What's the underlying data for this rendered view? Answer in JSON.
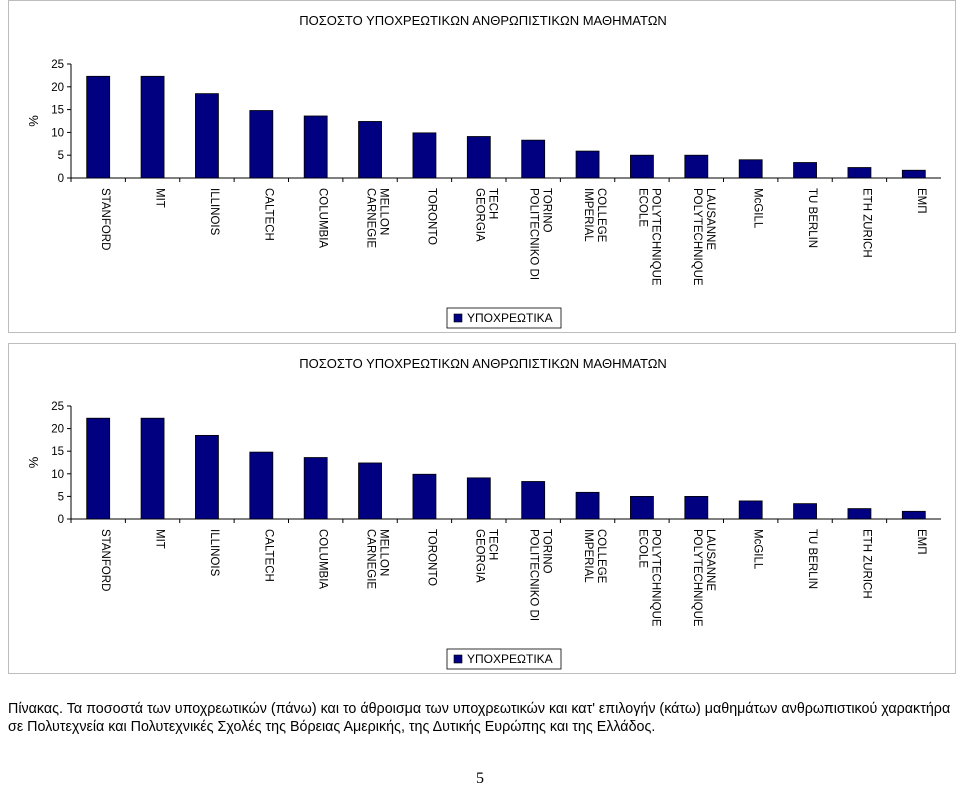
{
  "chart_data": [
    {
      "type": "bar",
      "title": "ΠΟΣΟΣΤΟ ΥΠΟΧΡΕΩΤΙΚΩΝ ΑΝΘΡΩΠΙΣΤΙΚΩΝ ΜΑΘΗΜΑΤΩΝ",
      "ylabel": "%",
      "ylim": [
        0,
        25
      ],
      "yticks": [
        0,
        5,
        10,
        15,
        20,
        25
      ],
      "grid": false,
      "legend_position": "bottom",
      "categories": [
        "STANFORD",
        "MIT",
        "ILLINOIS",
        "CALTECH",
        "COLUMBIA",
        "CARNEGIE MELLON",
        "TORONTO",
        "GEORGIA TECH",
        "POLITECNIKO DI TORINO",
        "IMPERIAL COLLEGE",
        "ECOLE POLYTECHNIQUE",
        "POLYTECHNIQUE LAUSANNE",
        "McGILL",
        "TU BERLIN",
        "ETH ZURICH",
        "ΕΜΠ"
      ],
      "series": [
        {
          "name": "ΥΠΟΧΡΕΩΤΙΚΑ",
          "color": "#000080",
          "values": [
            22.3,
            22.3,
            18.5,
            14.8,
            13.6,
            12.4,
            9.9,
            9.1,
            8.3,
            5.9,
            5.0,
            5.0,
            4.0,
            3.4,
            2.3,
            1.7
          ]
        }
      ]
    },
    {
      "type": "bar",
      "title": "ΠΟΣΟΣΤΟ ΥΠΟΧΡΕΩΤΙΚΩΝ ΑΝΘΡΩΠΙΣΤΙΚΩΝ ΜΑΘΗΜΑΤΩΝ",
      "ylabel": "%",
      "ylim": [
        0,
        25
      ],
      "yticks": [
        0,
        5,
        10,
        15,
        20,
        25
      ],
      "grid": false,
      "legend_position": "bottom",
      "categories": [
        "STANFORD",
        "MIT",
        "ILLINOIS",
        "CALTECH",
        "COLUMBIA",
        "CARNEGIE MELLON",
        "TORONTO",
        "GEORGIA TECH",
        "POLITECNIKO DI TORINO",
        "IMPERIAL COLLEGE",
        "ECOLE POLYTECHNIQUE",
        "POLYTECHNIQUE LAUSANNE",
        "McGILL",
        "TU BERLIN",
        "ETH ZURICH",
        "ΕΜΠ"
      ],
      "series": [
        {
          "name": "ΥΠΟΧΡΕΩΤΙΚΑ",
          "color": "#000080",
          "values": [
            22.3,
            22.3,
            18.5,
            14.8,
            13.6,
            12.4,
            9.9,
            9.1,
            8.3,
            5.9,
            5.0,
            5.0,
            4.0,
            3.4,
            2.3,
            1.7
          ]
        }
      ]
    }
  ],
  "caption": "Πίνακας. Τα ποσοστά των υποχρεωτικών (πάνω) και το άθροισμα των υποχρεωτικών και κατ' επιλογήν (κάτω) μαθημάτων ανθρωπιστικού χαρακτήρα σε Πολυτεχνεία και Πολυτεχνικές Σχολές της Βόρειας Αμερικής, της Δυτικής Ευρώπης και της Ελλάδος.",
  "page_number": "5"
}
